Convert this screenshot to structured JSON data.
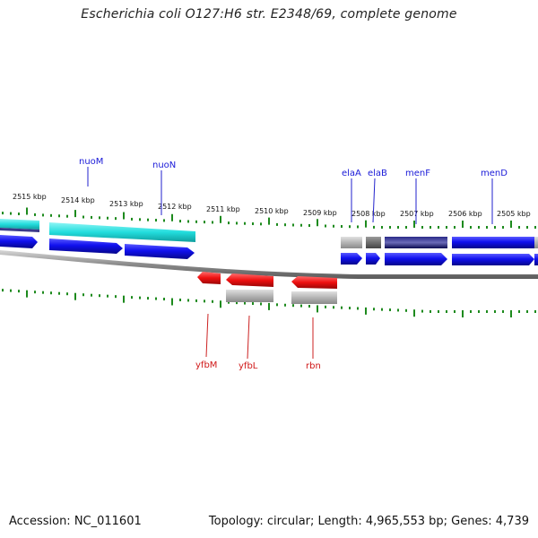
{
  "title": "Escherichia coli O127:H6 str. E2348/69, complete genome",
  "footer": {
    "accession": "Accession: NC_011601",
    "summary": "Topology: circular; Length: 4,965,553 bp; Genes: 4,739"
  },
  "scale_labels": [
    "2515 kbp",
    "2514 kbp",
    "2513 kbp",
    "2512 kbp",
    "2511 kbp",
    "2510 kbp",
    "2509 kbp",
    "2508 kbp",
    "2507 kbp",
    "2506 kbp",
    "2505 kbp"
  ],
  "gene_labels_top": [
    "nuoM",
    "nuoN",
    "elaA",
    "elaB",
    "menF",
    "menD"
  ],
  "gene_labels_bottom": [
    "yfbM",
    "yfbL",
    "rbn"
  ],
  "colors": {
    "forward_gene": "#1010ee",
    "reverse_gene": "#ee1010",
    "highlight": "#22dddd",
    "navy": "#10106a",
    "grey": "#b0b0b0",
    "dark_grey": "#707070",
    "backbone": "#8c8c8c",
    "tick": "#1d8a1d"
  }
}
